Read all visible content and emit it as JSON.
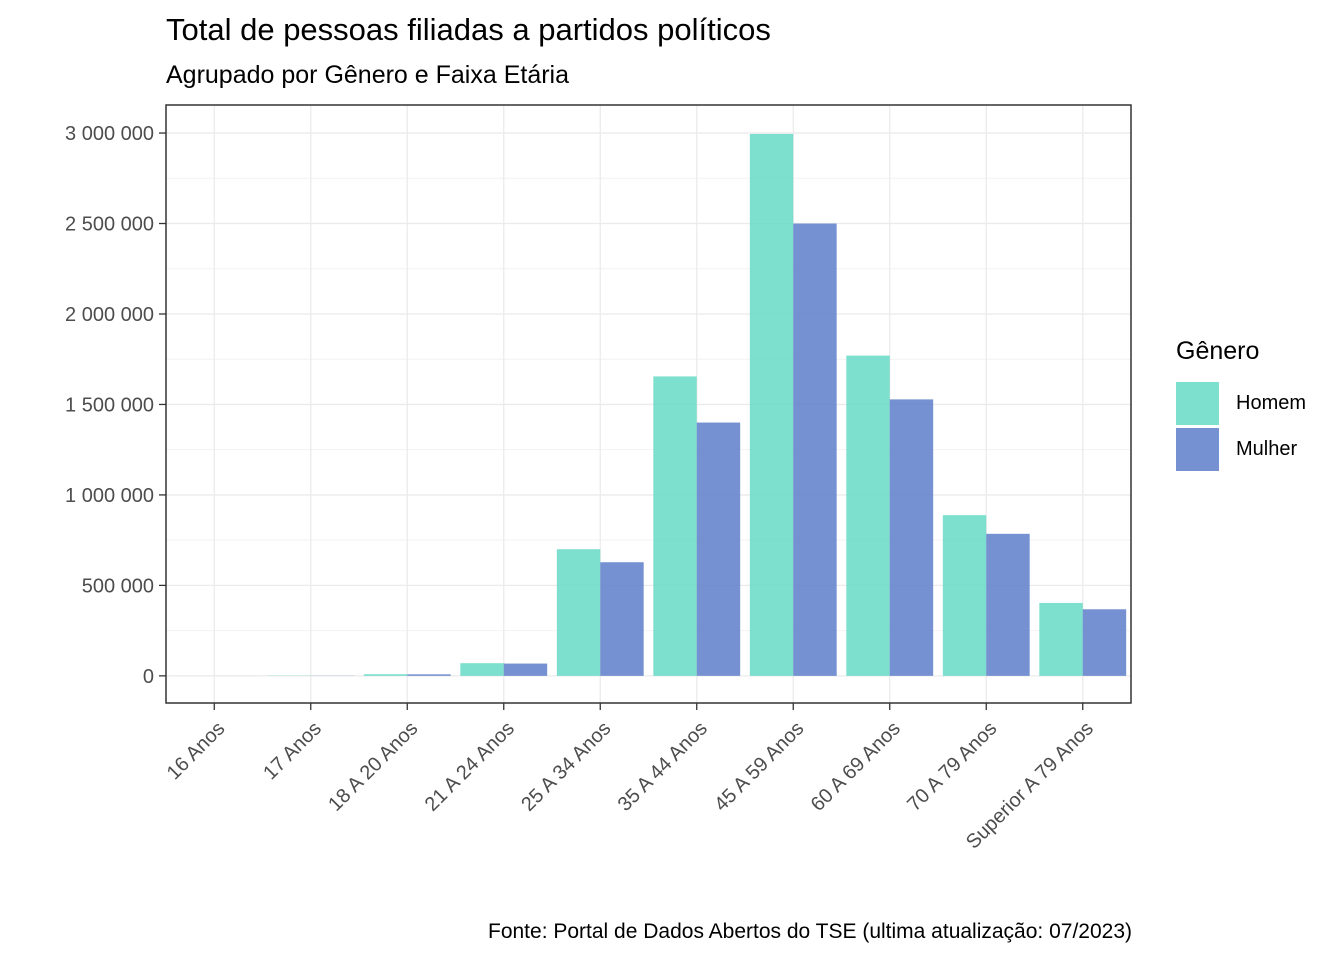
{
  "chart_data": {
    "type": "bar",
    "title": "Total de pessoas filiadas a partidos políticos",
    "subtitle": "Agrupado por Gênero e Faixa Etária",
    "caption": "Fonte: Portal de Dados Abertos do TSE (ultima atualização: 07/2023)",
    "xlabel": "",
    "ylabel": "",
    "categories": [
      "16 Anos",
      "17 Anos",
      "18 A 20 Anos",
      "21 A 24 Anos",
      "25 A 34 Anos",
      "35 A 44 Anos",
      "45 A 59 Anos",
      "60 A 69 Anos",
      "70 A 79 Anos",
      "Superior A 79 Anos"
    ],
    "legend_title": "Gênero",
    "legend_position": "right",
    "series": [
      {
        "name": "Homem",
        "color": "#66D9C4",
        "values": [
          300,
          1500,
          9000,
          70000,
          700000,
          1655000,
          2995000,
          1770000,
          888000,
          403000
        ]
      },
      {
        "name": "Mulher",
        "color": "#5E7EC9",
        "values": [
          200,
          1000,
          8500,
          68000,
          628000,
          1400000,
          2500000,
          1528000,
          785000,
          368000
        ]
      }
    ],
    "ylim": [
      -150000,
      3155000
    ],
    "yticks": [
      0,
      500000,
      1000000,
      1500000,
      2000000,
      2500000,
      3000000
    ],
    "ytick_labels": [
      "0",
      "500 000",
      "1 000 000",
      "1 500 000",
      "2 000 000",
      "2 500 000",
      "3 000 000"
    ],
    "grid": true
  }
}
